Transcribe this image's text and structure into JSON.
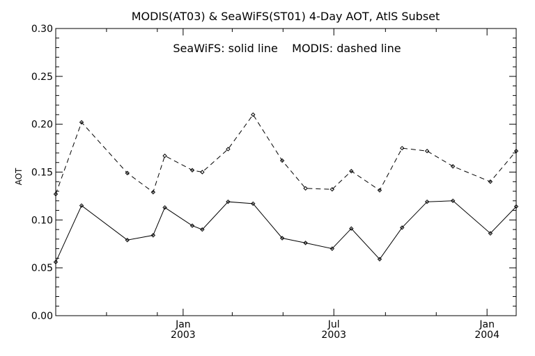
{
  "chart_data": {
    "type": "line",
    "title": "MODIS(AT03) & SeaWiFS(ST01) 4-Day AOT, AtlS Subset",
    "annotation": "SeaWiFS: solid line    MODIS: dashed line",
    "ylabel": "AOT",
    "xlabel": "",
    "ylim": [
      0.0,
      0.3
    ],
    "yticks": [
      "0.00",
      "0.05",
      "0.10",
      "0.15",
      "0.20",
      "0.25",
      "0.30"
    ],
    "xticks": [
      {
        "month": "Jan",
        "year": "2003"
      },
      {
        "month": "Jul",
        "year": "2003"
      },
      {
        "month": "Jan",
        "year": "2004"
      }
    ],
    "xlim": [
      "2002-08-01",
      "2004-02-05"
    ],
    "grid": false,
    "x": [
      "2002-08-01",
      "2002-09-01",
      "2002-10-26",
      "2002-11-26",
      "2002-12-10",
      "2003-01-12",
      "2003-01-24",
      "2003-02-24",
      "2003-03-26",
      "2003-04-30",
      "2003-05-28",
      "2003-06-29",
      "2003-07-22",
      "2003-08-25",
      "2003-09-21",
      "2003-10-21",
      "2003-11-21",
      "2004-01-05",
      "2004-02-05"
    ],
    "series": [
      {
        "name": "SeaWiFS",
        "style": "solid",
        "values": [
          0.056,
          0.115,
          0.079,
          0.084,
          0.113,
          0.094,
          0.09,
          0.119,
          0.117,
          0.081,
          0.076,
          0.07,
          0.091,
          0.059,
          0.092,
          0.119,
          0.12,
          0.086,
          0.114
        ]
      },
      {
        "name": "MODIS",
        "style": "dashed",
        "values": [
          0.127,
          0.202,
          0.149,
          0.129,
          0.167,
          0.152,
          0.15,
          0.174,
          0.21,
          0.162,
          0.133,
          0.132,
          0.151,
          0.131,
          0.175,
          0.172,
          0.156,
          0.14,
          0.172
        ]
      }
    ]
  }
}
